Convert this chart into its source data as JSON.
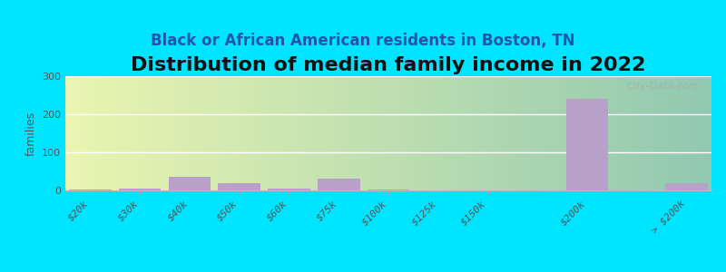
{
  "title": "Distribution of median family income in 2022",
  "subtitle": "Black or African American residents in Boston, TN",
  "ylabel": "families",
  "categories": [
    "$20k",
    "$30k",
    "$40k",
    "$50k",
    "$60k",
    "$75k",
    "$100k",
    "$125k",
    "$150k",
    "$200k",
    "> $200k"
  ],
  "values": [
    2,
    5,
    35,
    20,
    5,
    32,
    3,
    1,
    0,
    240,
    20
  ],
  "bar_color": "#b8a0c8",
  "background_color": "#00e5ff",
  "ylim": [
    0,
    300
  ],
  "yticks": [
    0,
    100,
    200,
    300
  ],
  "title_fontsize": 16,
  "subtitle_fontsize": 12,
  "watermark": "City-Data.com",
  "bar_positions": [
    0,
    1,
    2,
    3,
    4,
    5,
    6,
    7,
    8,
    10,
    12
  ],
  "bar_width": 0.85
}
